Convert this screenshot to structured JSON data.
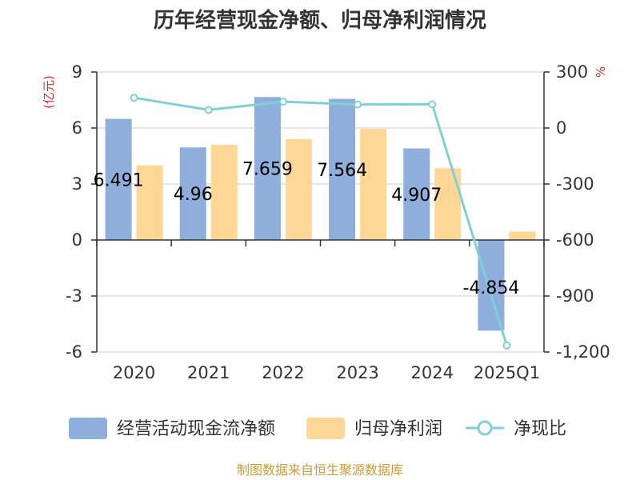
{
  "chart_data": {
    "type": "bar",
    "title": "历年经营现金净额、归母净利润情况",
    "categories": [
      "2020",
      "2021",
      "2022",
      "2023",
      "2024",
      "2025Q1"
    ],
    "left_axis": {
      "unit": "(亿元)",
      "ylim": [
        -6,
        9
      ],
      "ticks": [
        "9",
        "6",
        "3",
        "0",
        "-3",
        "-6"
      ],
      "tick_values": [
        9,
        6,
        3,
        0,
        -3,
        -6
      ]
    },
    "right_axis": {
      "unit": "%",
      "ylim": [
        -1200,
        300
      ],
      "ticks": [
        "300",
        "0",
        "-300",
        "-600",
        "-900",
        "-1,200"
      ],
      "tick_values": [
        300,
        0,
        -300,
        -600,
        -900,
        -1200
      ]
    },
    "series": [
      {
        "name": "经营活动现金流净额",
        "type": "bar",
        "axis": "left",
        "color": "#8eaedc",
        "values": [
          6.491,
          4.96,
          7.659,
          7.564,
          4.907,
          -4.854
        ],
        "labels": [
          "6.491",
          "4.96",
          "7.659",
          "7.564",
          "4.907",
          "-4.854"
        ]
      },
      {
        "name": "归母净利润",
        "type": "bar",
        "axis": "left",
        "color": "#fed796",
        "values": [
          4.0,
          5.1,
          5.4,
          5.95,
          3.85,
          0.45
        ]
      },
      {
        "name": "净现比",
        "type": "line",
        "axis": "right",
        "color": "#80d0d8",
        "values": [
          162,
          97,
          141,
          126,
          127,
          -1165
        ]
      }
    ],
    "grid": true,
    "legend_position": "bottom"
  },
  "source_text": "制图数据来自恒生聚源数据库"
}
